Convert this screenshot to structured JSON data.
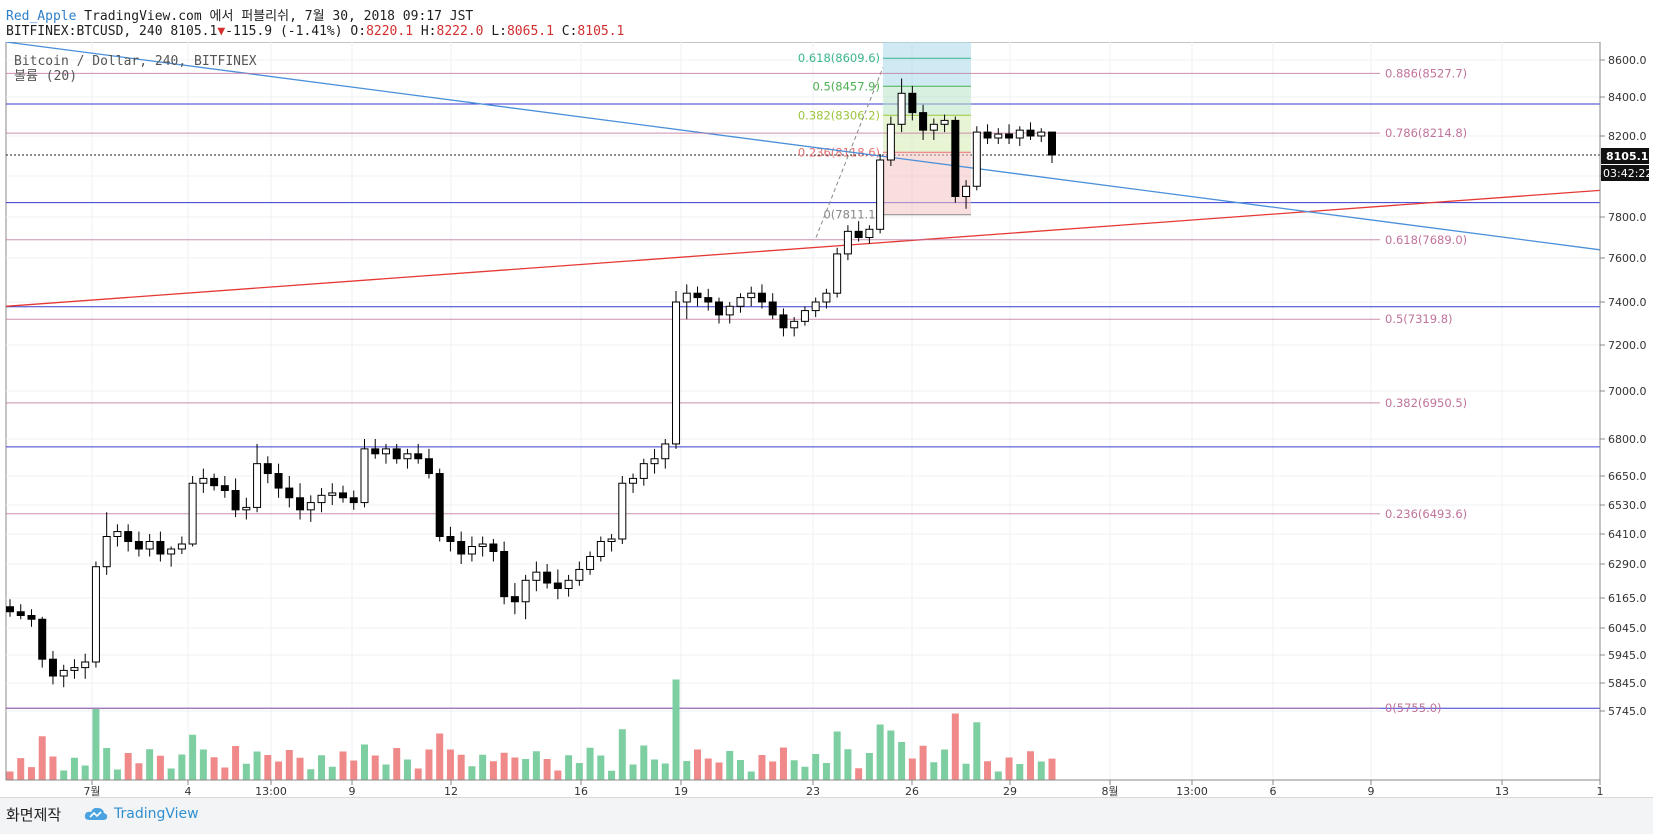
{
  "header": {
    "author": "Red_Apple",
    "published": "TradingView.com 에서 퍼블리쉬, 7월 30, 2018 09:17 JST",
    "symbol": "BITFINEX:BTCUSD, 240",
    "price": "8105.1",
    "change_arrow": "▼",
    "change": "-115.9 (-1.41%)",
    "o_label": "O:",
    "o_value": "8220.1",
    "h_label": "H:",
    "h_value": "8222.0",
    "l_label": "L:",
    "l_value": "8065.1",
    "c_label": "C:",
    "c_value": "8105.1"
  },
  "footer": {
    "label": "화면제작",
    "brand": "TradingView",
    "icon": "tradingview-cloud-icon"
  },
  "colors": {
    "up": "#000000",
    "down": "#000000",
    "vol_up": "#7dcfa1",
    "vol_down": "#f08a8a",
    "fib_main": "#c0739b",
    "hline": "#3a3ad0",
    "trend_red": "#e53935",
    "trend_blue": "#4a90d9"
  },
  "chart_data": {
    "type": "candlestick",
    "title": "Bitcoin / Dollar, 240, BITFINEX",
    "volume_label": "볼륨 (20)",
    "last_price": "8105.1",
    "countdown": "03:42:22",
    "y_ticks": [
      "8600.0",
      "8400.0",
      "8200.0",
      "8000.0",
      "7800.0",
      "7600.0",
      "7400.0",
      "7200.0",
      "7000.0",
      "6800.0",
      "6650.0",
      "6530.0",
      "6410.0",
      "6290.0",
      "6165.0",
      "6045.0",
      "5945.0",
      "5845.0",
      "5745.0"
    ],
    "x_ticks": [
      "7월",
      "4",
      "13:00",
      "9",
      "12",
      "16",
      "19",
      "23",
      "26",
      "29",
      "8월",
      "13:00",
      "6",
      "9",
      "13",
      "1"
    ],
    "fib_levels": [
      {
        "label": "0.886(8527.7)",
        "value": 8527.7
      },
      {
        "label": "0.786(8214.8)",
        "value": 8214.8
      },
      {
        "label": "0.618(7689.0)",
        "value": 7689.0
      },
      {
        "label": "0.5(7319.8)",
        "value": 7319.8
      },
      {
        "label": "0.382(6950.5)",
        "value": 6950.5
      },
      {
        "label": "0.236(6493.6)",
        "value": 6493.6
      },
      {
        "label": "0(5755.0)",
        "value": 5755.0
      }
    ],
    "fib_zones": [
      {
        "label": "0.618(8609.6)",
        "value": 8609.6,
        "color": "#3bb58c"
      },
      {
        "label": "0.5(8457.9)",
        "value": 8457.9,
        "color": "#4caf50"
      },
      {
        "label": "0.382(8306.2)",
        "value": 8306.2,
        "color": "#9bc53d"
      },
      {
        "label": "0.236(8118.6)",
        "value": 8118.6,
        "color": "#e57373"
      },
      {
        "label": "0(7811.1)",
        "value": 7811.1,
        "color": "#888888"
      }
    ],
    "horizontal_lines": [
      8364,
      7870,
      7378,
      6768,
      5755
    ],
    "ohlc": [
      [
        6130,
        6160,
        6090,
        6110
      ],
      [
        6110,
        6140,
        6080,
        6095
      ],
      [
        6095,
        6120,
        6050,
        6080
      ],
      [
        6080,
        6090,
        5900,
        5930
      ],
      [
        5930,
        5960,
        5840,
        5870
      ],
      [
        5870,
        5910,
        5830,
        5890
      ],
      [
        5890,
        5930,
        5860,
        5900
      ],
      [
        5900,
        5950,
        5860,
        5920
      ],
      [
        5920,
        6300,
        5900,
        6280
      ],
      [
        6280,
        6500,
        6250,
        6400
      ],
      [
        6400,
        6450,
        6360,
        6420
      ],
      [
        6420,
        6450,
        6340,
        6380
      ],
      [
        6380,
        6420,
        6320,
        6350
      ],
      [
        6350,
        6410,
        6320,
        6380
      ],
      [
        6380,
        6420,
        6300,
        6330
      ],
      [
        6330,
        6360,
        6280,
        6350
      ],
      [
        6350,
        6400,
        6330,
        6370
      ],
      [
        6370,
        6650,
        6360,
        6620
      ],
      [
        6620,
        6680,
        6580,
        6640
      ],
      [
        6640,
        6660,
        6590,
        6610
      ],
      [
        6610,
        6650,
        6560,
        6590
      ],
      [
        6590,
        6640,
        6480,
        6510
      ],
      [
        6510,
        6560,
        6470,
        6520
      ],
      [
        6520,
        6780,
        6500,
        6700
      ],
      [
        6700,
        6730,
        6620,
        6660
      ],
      [
        6660,
        6700,
        6560,
        6600
      ],
      [
        6600,
        6650,
        6520,
        6560
      ],
      [
        6560,
        6620,
        6470,
        6510
      ],
      [
        6510,
        6570,
        6460,
        6540
      ],
      [
        6540,
        6600,
        6500,
        6570
      ],
      [
        6570,
        6620,
        6530,
        6580
      ],
      [
        6580,
        6610,
        6540,
        6560
      ],
      [
        6560,
        6590,
        6510,
        6540
      ],
      [
        6540,
        6800,
        6520,
        6760
      ],
      [
        6760,
        6800,
        6720,
        6740
      ],
      [
        6740,
        6780,
        6700,
        6760
      ],
      [
        6760,
        6780,
        6700,
        6720
      ],
      [
        6720,
        6760,
        6680,
        6740
      ],
      [
        6740,
        6780,
        6700,
        6720
      ],
      [
        6720,
        6760,
        6640,
        6660
      ],
      [
        6660,
        6680,
        6380,
        6400
      ],
      [
        6400,
        6440,
        6340,
        6380
      ],
      [
        6380,
        6420,
        6290,
        6330
      ],
      [
        6330,
        6400,
        6300,
        6360
      ],
      [
        6360,
        6400,
        6320,
        6370
      ],
      [
        6370,
        6390,
        6300,
        6340
      ],
      [
        6340,
        6380,
        6140,
        6170
      ],
      [
        6170,
        6220,
        6100,
        6150
      ],
      [
        6150,
        6250,
        6080,
        6230
      ],
      [
        6230,
        6300,
        6190,
        6260
      ],
      [
        6260,
        6290,
        6200,
        6220
      ],
      [
        6220,
        6270,
        6160,
        6200
      ],
      [
        6200,
        6250,
        6170,
        6230
      ],
      [
        6230,
        6300,
        6210,
        6270
      ],
      [
        6270,
        6340,
        6250,
        6320
      ],
      [
        6320,
        6400,
        6300,
        6380
      ],
      [
        6380,
        6410,
        6340,
        6390
      ],
      [
        6390,
        6650,
        6370,
        6620
      ],
      [
        6620,
        6660,
        6580,
        6640
      ],
      [
        6640,
        6720,
        6610,
        6700
      ],
      [
        6700,
        6760,
        6660,
        6720
      ],
      [
        6720,
        6800,
        6680,
        6780
      ],
      [
        6780,
        7450,
        6760,
        7400
      ],
      [
        7400,
        7480,
        7320,
        7440
      ],
      [
        7440,
        7470,
        7380,
        7420
      ],
      [
        7420,
        7460,
        7360,
        7400
      ],
      [
        7400,
        7420,
        7300,
        7340
      ],
      [
        7340,
        7400,
        7300,
        7380
      ],
      [
        7380,
        7440,
        7350,
        7420
      ],
      [
        7420,
        7470,
        7380,
        7440
      ],
      [
        7440,
        7480,
        7370,
        7400
      ],
      [
        7400,
        7440,
        7320,
        7340
      ],
      [
        7340,
        7370,
        7240,
        7280
      ],
      [
        7280,
        7330,
        7240,
        7310
      ],
      [
        7310,
        7380,
        7290,
        7360
      ],
      [
        7360,
        7420,
        7330,
        7400
      ],
      [
        7400,
        7460,
        7370,
        7440
      ],
      [
        7440,
        7650,
        7420,
        7620
      ],
      [
        7620,
        7760,
        7590,
        7730
      ],
      [
        7730,
        7780,
        7680,
        7700
      ],
      [
        7700,
        7760,
        7670,
        7740
      ],
      [
        7740,
        8110,
        7720,
        8080
      ],
      [
        8080,
        8300,
        8050,
        8260
      ],
      [
        8260,
        8500,
        8220,
        8420
      ],
      [
        8420,
        8460,
        8280,
        8320
      ],
      [
        8320,
        8360,
        8180,
        8230
      ],
      [
        8230,
        8290,
        8180,
        8260
      ],
      [
        8260,
        8310,
        8220,
        8280
      ],
      [
        8280,
        8300,
        7870,
        7900
      ],
      [
        7900,
        7980,
        7840,
        7950
      ],
      [
        7950,
        8250,
        7930,
        8220
      ],
      [
        8220,
        8260,
        8160,
        8190
      ],
      [
        8190,
        8240,
        8160,
        8210
      ],
      [
        8210,
        8260,
        8160,
        8190
      ],
      [
        8190,
        8250,
        8150,
        8230
      ],
      [
        8230,
        8270,
        8180,
        8200
      ],
      [
        8200,
        8240,
        8170,
        8220
      ],
      [
        8220,
        8222,
        8065,
        8105.1
      ]
    ]
  }
}
